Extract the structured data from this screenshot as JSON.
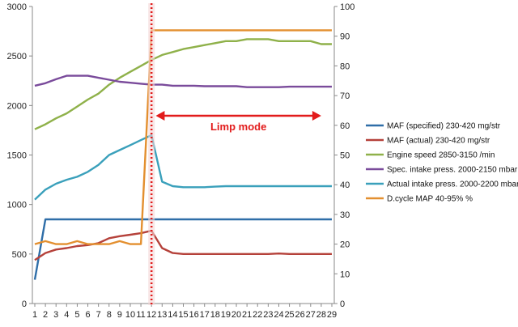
{
  "chart_data": {
    "type": "line",
    "x": [
      1,
      2,
      3,
      4,
      5,
      6,
      7,
      8,
      9,
      10,
      11,
      12,
      13,
      14,
      15,
      16,
      17,
      18,
      19,
      20,
      21,
      22,
      23,
      24,
      25,
      26,
      27,
      28,
      29
    ],
    "left_axis": {
      "ticks": [
        "0",
        "500",
        "1000",
        "1500",
        "2000",
        "2500",
        "3000"
      ],
      "range": [
        0,
        3000
      ]
    },
    "right_axis": {
      "ticks": [
        "0",
        "10",
        "20",
        "30",
        "40",
        "50",
        "60",
        "70",
        "80",
        "90",
        "100"
      ],
      "range": [
        0,
        100
      ]
    },
    "x_ticks": [
      "1",
      "2",
      "3",
      "4",
      "5",
      "6",
      "7",
      "8",
      "9",
      "10",
      "11",
      "12",
      "13",
      "14",
      "15",
      "16",
      "17",
      "18",
      "19",
      "20",
      "21",
      "22",
      "23",
      "24",
      "25",
      "26",
      "27",
      "28",
      "29"
    ],
    "grid": false,
    "legend_position": "right",
    "series": [
      {
        "name": "MAF (specified) 230-420  mg/str",
        "color": "#2f6ea8",
        "axis": "left",
        "values": [
          240,
          850,
          850,
          850,
          850,
          850,
          850,
          850,
          850,
          850,
          850,
          850,
          850,
          850,
          850,
          850,
          850,
          850,
          850,
          850,
          850,
          850,
          850,
          850,
          850,
          850,
          850,
          850,
          850
        ]
      },
      {
        "name": "MAF (actual) 230-420  mg/str",
        "color": "#b5413a",
        "axis": "left",
        "values": [
          440,
          510,
          545,
          560,
          580,
          590,
          610,
          660,
          680,
          695,
          710,
          735,
          560,
          510,
          500,
          500,
          500,
          500,
          500,
          500,
          500,
          500,
          500,
          505,
          500,
          500,
          500,
          500,
          500
        ]
      },
      {
        "name": "Engine speed 2850-3150  /min",
        "color": "#8fb14a",
        "axis": "left",
        "values": [
          1760,
          1810,
          1870,
          1920,
          1990,
          2060,
          2120,
          2210,
          2280,
          2340,
          2400,
          2460,
          2510,
          2540,
          2570,
          2590,
          2610,
          2630,
          2650,
          2650,
          2670,
          2670,
          2670,
          2650,
          2650,
          2650,
          2650,
          2620,
          2620
        ]
      },
      {
        "name": "Spec. intake press. 2000-2150  mbar",
        "color": "#7a4b9b",
        "axis": "left",
        "values": [
          2200,
          2225,
          2265,
          2300,
          2300,
          2300,
          2280,
          2260,
          2240,
          2230,
          2220,
          2210,
          2210,
          2200,
          2200,
          2200,
          2195,
          2195,
          2195,
          2195,
          2185,
          2185,
          2185,
          2185,
          2190,
          2190,
          2190,
          2190,
          2190
        ]
      },
      {
        "name": "Actual intake press. 2000-2200  mbar",
        "color": "#3aa0bb",
        "axis": "left",
        "values": [
          1050,
          1150,
          1210,
          1250,
          1280,
          1330,
          1400,
          1500,
          1550,
          1600,
          1650,
          1700,
          1230,
          1185,
          1175,
          1175,
          1175,
          1180,
          1185,
          1185,
          1185,
          1185,
          1185,
          1185,
          1185,
          1185,
          1185,
          1185,
          1185
        ]
      },
      {
        "name": "D.cycle MAP 40-95% %",
        "color": "#e38f2f",
        "axis": "right",
        "values": [
          20,
          21,
          20,
          20,
          21,
          20,
          20,
          20,
          21,
          20,
          20,
          92,
          92,
          92,
          92,
          92,
          92,
          92,
          92,
          92,
          92,
          92,
          92,
          92,
          92,
          92,
          92,
          92,
          92
        ]
      }
    ],
    "annotations": {
      "limp_mode_label": "Limp mode",
      "marker_at_x": 12
    }
  }
}
